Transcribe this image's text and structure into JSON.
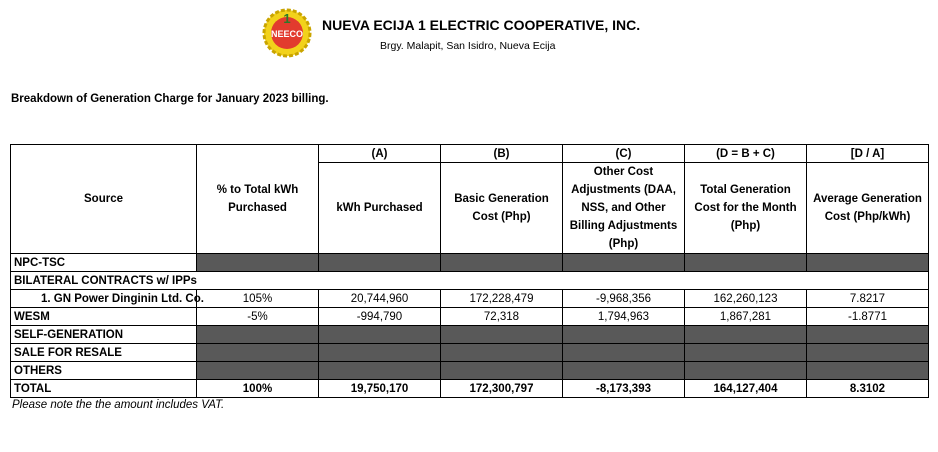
{
  "header": {
    "logo_text": "NEECO",
    "logo_number": "1",
    "title": "NUEVA ECIJA 1 ELECTRIC COOPERATIVE, INC.",
    "address": "Brgy. Malapit, San Isidro, Nueva Ecija"
  },
  "subtitle": "Breakdown of Generation Charge  for January 2023 billing.",
  "table": {
    "columns": [
      {
        "label": "Source"
      },
      {
        "label": "% to Total kWh Purchased"
      },
      {
        "letter": "(A)",
        "label": "kWh Purchased"
      },
      {
        "letter": "(B)",
        "label": "Basic Generation Cost (Php)"
      },
      {
        "letter": "(C)",
        "label": "Other Cost Adjustments (DAA, NSS, and Other Billing Adjustments (Php)"
      },
      {
        "letter": "(D = B + C)",
        "label": "Total Generation Cost for the Month (Php)"
      },
      {
        "letter": "[D / A]",
        "label": "Average Generation Cost (Php/kWh)"
      }
    ],
    "rows": [
      {
        "source": "NPC-TSC"
      },
      {
        "source": "BILATERAL CONTRACTS w/ IPPs"
      },
      {
        "source": "1. GN Power Dinginin Ltd. Co.",
        "values": [
          "105%",
          "20,744,960",
          "172,228,479",
          "-9,968,356",
          "162,260,123",
          "7.8217"
        ]
      },
      {
        "source": "WESM",
        "values": [
          "-5%",
          "-994,790",
          "72,318",
          "1,794,963",
          "1,867,281",
          "-1.8771"
        ]
      },
      {
        "source": "SELF-GENERATION"
      },
      {
        "source": "SALE FOR RESALE"
      },
      {
        "source": "OTHERS"
      },
      {
        "source": "TOTAL",
        "values": [
          "100%",
          "19,750,170",
          "172,300,797",
          "-8,173,393",
          "164,127,404",
          "8.3102"
        ]
      }
    ]
  },
  "note": "Please note the the amount includes VAT."
}
